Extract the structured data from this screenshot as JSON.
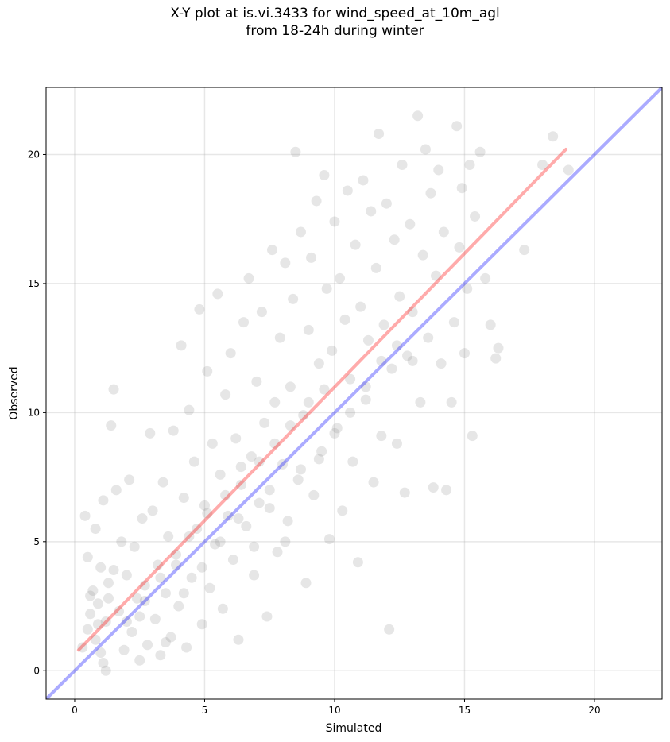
{
  "chart_data": {
    "type": "scatter",
    "title": [
      "X-Y plot at is.vi.3433 for wind_speed_at_10m_agl",
      "from 18-24h during winter"
    ],
    "xlabel": "Simulated",
    "ylabel": "Observed",
    "xlim": [
      -1.1,
      22.6
    ],
    "ylim": [
      -1.1,
      22.6
    ],
    "x_ticks": [
      0,
      5,
      10,
      15,
      20
    ],
    "y_ticks": [
      0,
      5,
      10,
      15,
      20
    ],
    "grid": true,
    "legend": "none",
    "marker_color": "#808080",
    "marker_alpha": 0.2,
    "series": [
      {
        "values": [
          [
            0.3,
            0.9
          ],
          [
            0.5,
            1.6
          ],
          [
            0.6,
            2.2
          ],
          [
            0.7,
            3.1
          ],
          [
            0.8,
            1.2
          ],
          [
            0.9,
            2.6
          ],
          [
            1.0,
            4.0
          ],
          [
            1.1,
            0.3
          ],
          [
            1.2,
            1.9
          ],
          [
            1.3,
            3.4
          ],
          [
            0.4,
            6.0
          ],
          [
            0.5,
            4.4
          ],
          [
            0.8,
            5.5
          ],
          [
            1.1,
            6.6
          ],
          [
            1.2,
            0.0
          ],
          [
            1.4,
            9.5
          ],
          [
            1.5,
            10.9
          ],
          [
            1.6,
            7.0
          ],
          [
            1.7,
            2.3
          ],
          [
            1.8,
            5.0
          ],
          [
            1.9,
            0.8
          ],
          [
            2.0,
            3.7
          ],
          [
            2.1,
            7.4
          ],
          [
            2.2,
            1.5
          ],
          [
            2.3,
            4.8
          ],
          [
            2.4,
            2.8
          ],
          [
            2.5,
            0.4
          ],
          [
            2.6,
            5.9
          ],
          [
            2.7,
            3.3
          ],
          [
            2.8,
            1.0
          ],
          [
            2.9,
            9.2
          ],
          [
            3.0,
            6.2
          ],
          [
            3.1,
            2.0
          ],
          [
            3.2,
            4.1
          ],
          [
            3.3,
            0.6
          ],
          [
            3.4,
            7.3
          ],
          [
            3.5,
            3.0
          ],
          [
            3.6,
            5.2
          ],
          [
            3.7,
            1.3
          ],
          [
            3.8,
            9.3
          ],
          [
            3.9,
            4.5
          ],
          [
            4.0,
            2.5
          ],
          [
            4.1,
            12.6
          ],
          [
            4.2,
            6.7
          ],
          [
            4.3,
            0.9
          ],
          [
            4.4,
            10.1
          ],
          [
            4.5,
            3.6
          ],
          [
            4.6,
            8.1
          ],
          [
            4.7,
            5.5
          ],
          [
            4.8,
            14.0
          ],
          [
            4.9,
            1.8
          ],
          [
            5.0,
            6.4
          ],
          [
            5.1,
            11.6
          ],
          [
            5.2,
            3.2
          ],
          [
            5.3,
            8.8
          ],
          [
            5.4,
            4.9
          ],
          [
            5.5,
            14.6
          ],
          [
            5.6,
            7.6
          ],
          [
            5.7,
            2.4
          ],
          [
            5.8,
            10.7
          ],
          [
            5.9,
            6.0
          ],
          [
            6.0,
            12.3
          ],
          [
            6.1,
            4.3
          ],
          [
            6.2,
            9.0
          ],
          [
            6.3,
            1.2
          ],
          [
            6.4,
            7.9
          ],
          [
            6.5,
            13.5
          ],
          [
            6.6,
            5.6
          ],
          [
            6.7,
            15.2
          ],
          [
            6.8,
            8.3
          ],
          [
            6.9,
            3.7
          ],
          [
            7.0,
            11.2
          ],
          [
            7.1,
            6.5
          ],
          [
            7.2,
            13.9
          ],
          [
            7.3,
            9.6
          ],
          [
            7.4,
            2.1
          ],
          [
            7.5,
            7.0
          ],
          [
            7.6,
            16.3
          ],
          [
            7.7,
            10.4
          ],
          [
            7.8,
            4.6
          ],
          [
            7.9,
            12.9
          ],
          [
            8.0,
            8.0
          ],
          [
            8.1,
            15.8
          ],
          [
            8.2,
            5.8
          ],
          [
            8.3,
            11.0
          ],
          [
            8.4,
            14.4
          ],
          [
            8.5,
            20.1
          ],
          [
            8.6,
            7.4
          ],
          [
            8.7,
            17.0
          ],
          [
            8.8,
            9.9
          ],
          [
            8.9,
            3.4
          ],
          [
            9.0,
            13.2
          ],
          [
            9.1,
            16.0
          ],
          [
            9.2,
            6.8
          ],
          [
            9.3,
            18.2
          ],
          [
            9.4,
            11.9
          ],
          [
            9.5,
            8.5
          ],
          [
            9.6,
            19.2
          ],
          [
            9.7,
            14.8
          ],
          [
            9.8,
            5.1
          ],
          [
            9.9,
            12.4
          ],
          [
            10.0,
            17.4
          ],
          [
            10.1,
            9.4
          ],
          [
            10.2,
            15.2
          ],
          [
            10.3,
            6.2
          ],
          [
            10.4,
            13.6
          ],
          [
            10.5,
            18.6
          ],
          [
            10.6,
            11.3
          ],
          [
            10.7,
            8.1
          ],
          [
            10.8,
            16.5
          ],
          [
            10.9,
            4.2
          ],
          [
            11.0,
            14.1
          ],
          [
            11.1,
            19.0
          ],
          [
            11.2,
            10.5
          ],
          [
            11.3,
            12.8
          ],
          [
            11.4,
            17.8
          ],
          [
            11.5,
            7.3
          ],
          [
            11.6,
            15.6
          ],
          [
            11.7,
            20.8
          ],
          [
            11.8,
            9.1
          ],
          [
            11.9,
            13.4
          ],
          [
            12.0,
            18.1
          ],
          [
            12.1,
            1.6
          ],
          [
            12.2,
            11.7
          ],
          [
            12.3,
            16.7
          ],
          [
            12.4,
            8.8
          ],
          [
            12.5,
            14.5
          ],
          [
            12.6,
            19.6
          ],
          [
            12.7,
            6.9
          ],
          [
            12.8,
            12.2
          ],
          [
            12.9,
            17.3
          ],
          [
            13.0,
            13.9
          ],
          [
            13.2,
            21.5
          ],
          [
            13.3,
            10.4
          ],
          [
            13.4,
            16.1
          ],
          [
            13.5,
            20.2
          ],
          [
            13.6,
            12.9
          ],
          [
            13.7,
            18.5
          ],
          [
            13.8,
            7.1
          ],
          [
            13.9,
            15.3
          ],
          [
            14.0,
            19.4
          ],
          [
            14.1,
            11.9
          ],
          [
            14.2,
            17.0
          ],
          [
            14.3,
            7.0
          ],
          [
            14.5,
            10.4
          ],
          [
            14.6,
            13.5
          ],
          [
            14.7,
            21.1
          ],
          [
            14.8,
            16.4
          ],
          [
            14.9,
            18.7
          ],
          [
            15.0,
            12.3
          ],
          [
            15.1,
            14.8
          ],
          [
            15.2,
            19.6
          ],
          [
            15.3,
            9.1
          ],
          [
            15.4,
            17.6
          ],
          [
            15.6,
            20.1
          ],
          [
            15.8,
            15.2
          ],
          [
            16.0,
            13.4
          ],
          [
            16.2,
            12.1
          ],
          [
            16.3,
            12.5
          ],
          [
            17.3,
            16.3
          ],
          [
            18.0,
            19.6
          ],
          [
            18.4,
            20.7
          ],
          [
            19.0,
            19.4
          ],
          [
            0.9,
            1.8
          ],
          [
            1.3,
            2.8
          ],
          [
            2.0,
            1.9
          ],
          [
            2.7,
            2.7
          ],
          [
            3.3,
            3.6
          ],
          [
            3.9,
            4.1
          ],
          [
            4.4,
            5.2
          ],
          [
            5.1,
            6.1
          ],
          [
            5.8,
            6.8
          ],
          [
            6.4,
            7.2
          ],
          [
            7.1,
            8.1
          ],
          [
            7.7,
            8.8
          ],
          [
            8.3,
            9.5
          ],
          [
            9.0,
            10.4
          ],
          [
            9.6,
            10.9
          ],
          [
            0.6,
            2.9
          ],
          [
            1.0,
            0.7
          ],
          [
            1.5,
            3.9
          ],
          [
            2.5,
            2.1
          ],
          [
            3.5,
            1.1
          ],
          [
            4.2,
            3.0
          ],
          [
            4.9,
            4.0
          ],
          [
            5.6,
            5.0
          ],
          [
            6.3,
            5.9
          ],
          [
            6.9,
            4.8
          ],
          [
            7.5,
            6.3
          ],
          [
            8.1,
            5.0
          ],
          [
            8.7,
            7.8
          ],
          [
            9.4,
            8.2
          ],
          [
            10.0,
            9.2
          ],
          [
            10.6,
            10.0
          ],
          [
            11.2,
            11.0
          ],
          [
            11.8,
            12.0
          ],
          [
            12.4,
            12.6
          ],
          [
            13.0,
            12.0
          ]
        ]
      }
    ],
    "reference_lines": [
      {
        "label": "",
        "color": "#0000ff",
        "alpha": 0.33,
        "points": [
          [
            -1.1,
            -1.1
          ],
          [
            22.6,
            22.6
          ]
        ]
      },
      {
        "label": "",
        "color": "#ff0000",
        "alpha": 0.33,
        "points": [
          [
            0.15,
            0.8
          ],
          [
            18.9,
            20.2
          ]
        ]
      }
    ]
  }
}
